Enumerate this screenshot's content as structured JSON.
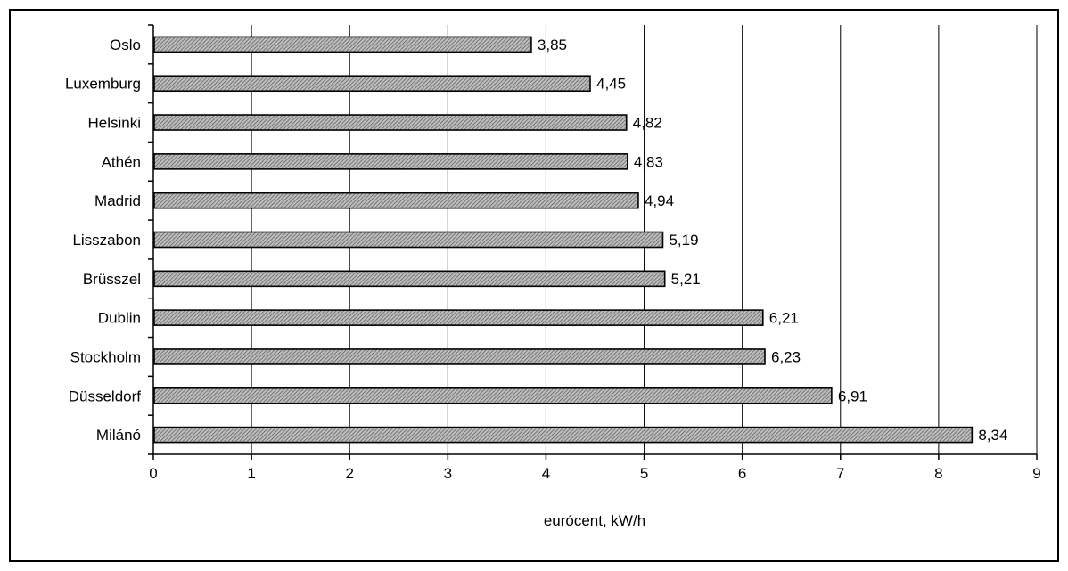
{
  "chart_data": {
    "type": "bar",
    "orientation": "horizontal",
    "title": "",
    "xlabel": "eurócent, kW/h",
    "ylabel": "",
    "xlim": [
      0,
      9
    ],
    "x_ticks": [
      "0",
      "1",
      "2",
      "3",
      "4",
      "5",
      "6",
      "7",
      "8",
      "9"
    ],
    "grid": "vertical",
    "legend": "none",
    "categories": [
      "Oslo",
      "Luxemburg",
      "Helsinki",
      "Athén",
      "Madrid",
      "Lisszabon",
      "Brüsszel",
      "Dublin",
      "Stockholm",
      "Düsseldorf",
      "Milánó"
    ],
    "values": [
      3.85,
      4.45,
      4.82,
      4.83,
      4.94,
      5.19,
      5.21,
      6.21,
      6.23,
      6.91,
      8.34
    ],
    "data_labels": [
      "3,85",
      "4,45",
      "4,82",
      "4,83",
      "4,94",
      "5,19",
      "5,21",
      "6,21",
      "6,23",
      "6,91",
      "8,34"
    ],
    "bar_fill": "hatched gray",
    "colors": {
      "bar_fill": "#8c8c8c",
      "bar_stroke": "#000000",
      "grid": "#000000"
    }
  }
}
